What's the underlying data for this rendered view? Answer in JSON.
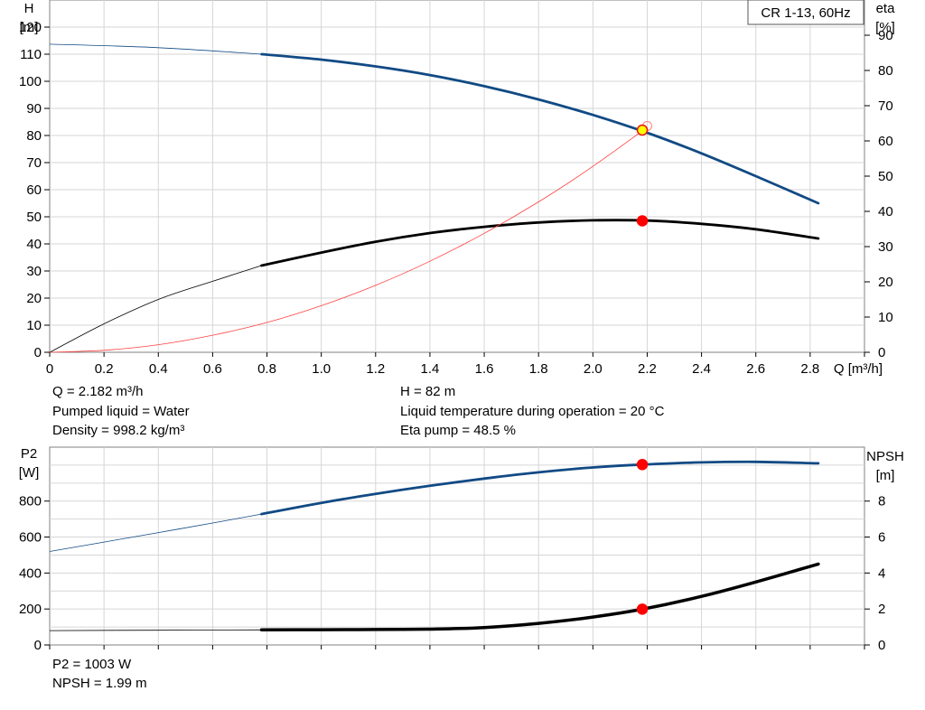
{
  "chart_data": [
    {
      "type": "line",
      "title": "CR 1-13, 60Hz",
      "xlabel": "Q [m³/h]",
      "ylabel_left": [
        "H",
        "[m]"
      ],
      "ylabel_right": [
        "eta",
        "[%]"
      ],
      "xlim": [
        0,
        3.0
      ],
      "ylim_left": [
        0,
        130
      ],
      "ylim_right": [
        0,
        100
      ],
      "grid": true,
      "x_ticks": [
        "0",
        "0.2",
        "0.4",
        "0.6",
        "0.8",
        "1.0",
        "1.2",
        "1.4",
        "1.6",
        "1.8",
        "2.0",
        "2.2",
        "2.4",
        "2.6",
        "2.8"
      ],
      "y_ticks_left": [
        "0",
        "10",
        "20",
        "30",
        "40",
        "50",
        "60",
        "70",
        "80",
        "90",
        "100",
        "110",
        "120"
      ],
      "y_ticks_right": [
        "0",
        "10",
        "20",
        "30",
        "40",
        "50",
        "60",
        "70",
        "80",
        "90"
      ],
      "series": [
        {
          "name": "H",
          "axis": "left",
          "color": "#114a84",
          "x": [
            0,
            0.4,
            0.78,
            1.0,
            1.2,
            1.4,
            1.6,
            1.8,
            2.0,
            2.2,
            2.4,
            2.6,
            2.83
          ],
          "y": [
            113.7,
            112.4,
            110.0,
            108.0,
            105.5,
            102.3,
            98.2,
            93.3,
            87.6,
            81.0,
            73.4,
            65.0,
            55.0
          ],
          "bold_from_x": 0.78
        },
        {
          "name": "Eta",
          "axis": "left",
          "color": "#000000",
          "x": [
            0,
            0.2,
            0.4,
            0.6,
            0.78,
            1.0,
            1.2,
            1.4,
            1.6,
            1.8,
            2.0,
            2.2,
            2.4,
            2.6,
            2.83
          ],
          "y": [
            0,
            10.5,
            19.5,
            26.2,
            32.0,
            36.8,
            40.8,
            44.0,
            46.3,
            47.9,
            48.7,
            48.6,
            47.4,
            45.4,
            42.0
          ],
          "bold_from_x": 0.78
        },
        {
          "name": "System curve",
          "axis": "left",
          "color": "#ff4040",
          "x": [
            0,
            0.2,
            0.4,
            0.6,
            0.8,
            1.0,
            1.2,
            1.4,
            1.6,
            1.8,
            2.0,
            2.2
          ],
          "y": [
            0,
            0.75,
            2.8,
            6.3,
            11.0,
            17.2,
            24.7,
            33.6,
            43.9,
            55.5,
            68.6,
            83.0
          ],
          "bold_from_x": null
        }
      ],
      "operating_points": [
        {
          "series": "H",
          "x": 2.182,
          "y": 82,
          "fill": "#ffff00",
          "stroke": "#e81010"
        },
        {
          "series": "Eta",
          "x": 2.182,
          "y": 48.5,
          "fill": "#ff0000",
          "stroke": "#ff0000"
        }
      ],
      "system_end_marker": {
        "x": 2.2,
        "y": 83.5
      }
    },
    {
      "type": "line",
      "xlabel": "",
      "ylabel_left": [
        "P2",
        "[W]"
      ],
      "ylabel_right": [
        "NPSH",
        "[m]"
      ],
      "xlim": [
        0,
        3.0
      ],
      "ylim_left": [
        0,
        1100
      ],
      "ylim_right": [
        0,
        11
      ],
      "grid": true,
      "y_ticks_left": [
        "0",
        "200",
        "400",
        "600",
        "800"
      ],
      "y_ticks_right": [
        "0",
        "2",
        "4",
        "6",
        "8"
      ],
      "series": [
        {
          "name": "P2",
          "axis": "left",
          "color": "#114a84",
          "x": [
            0,
            0.2,
            0.4,
            0.6,
            0.78,
            1.0,
            1.2,
            1.4,
            1.6,
            1.8,
            2.0,
            2.182,
            2.4,
            2.6,
            2.83
          ],
          "y": [
            520,
            572,
            625,
            678,
            728,
            790,
            840,
            885,
            925,
            960,
            987,
            1003,
            1015,
            1018,
            1010
          ],
          "bold_from_x": 0.78
        },
        {
          "name": "NPSH",
          "axis": "left",
          "color": "#000000",
          "x": [
            0,
            0.4,
            0.78,
            1.0,
            1.2,
            1.4,
            1.6,
            1.8,
            2.0,
            2.182,
            2.4,
            2.6,
            2.83
          ],
          "y": [
            80,
            82,
            84,
            85,
            86,
            88,
            97,
            120,
            155,
            199,
            270,
            350,
            450
          ],
          "bold_from_x": 0.78
        }
      ],
      "operating_points": [
        {
          "series": "P2",
          "x": 2.182,
          "y": 1003,
          "fill": "#ff0000",
          "stroke": "#ff0000"
        },
        {
          "series": "NPSH",
          "x": 2.182,
          "y": 199,
          "fill": "#ff0000",
          "stroke": "#ff0000"
        }
      ]
    }
  ],
  "info_top": {
    "q": "Q = 2.182 m³/h",
    "pumped_liquid": "Pumped liquid = Water",
    "density": "Density = 998.2 kg/m³",
    "h": "H = 82 m",
    "liquid_temp": "Liquid temperature during operation = 20 °C",
    "eta_pump": "Eta pump = 48.5 %"
  },
  "info_bottom": {
    "p2": "P2 = 1003 W",
    "npsh": "NPSH = 1.99 m"
  }
}
